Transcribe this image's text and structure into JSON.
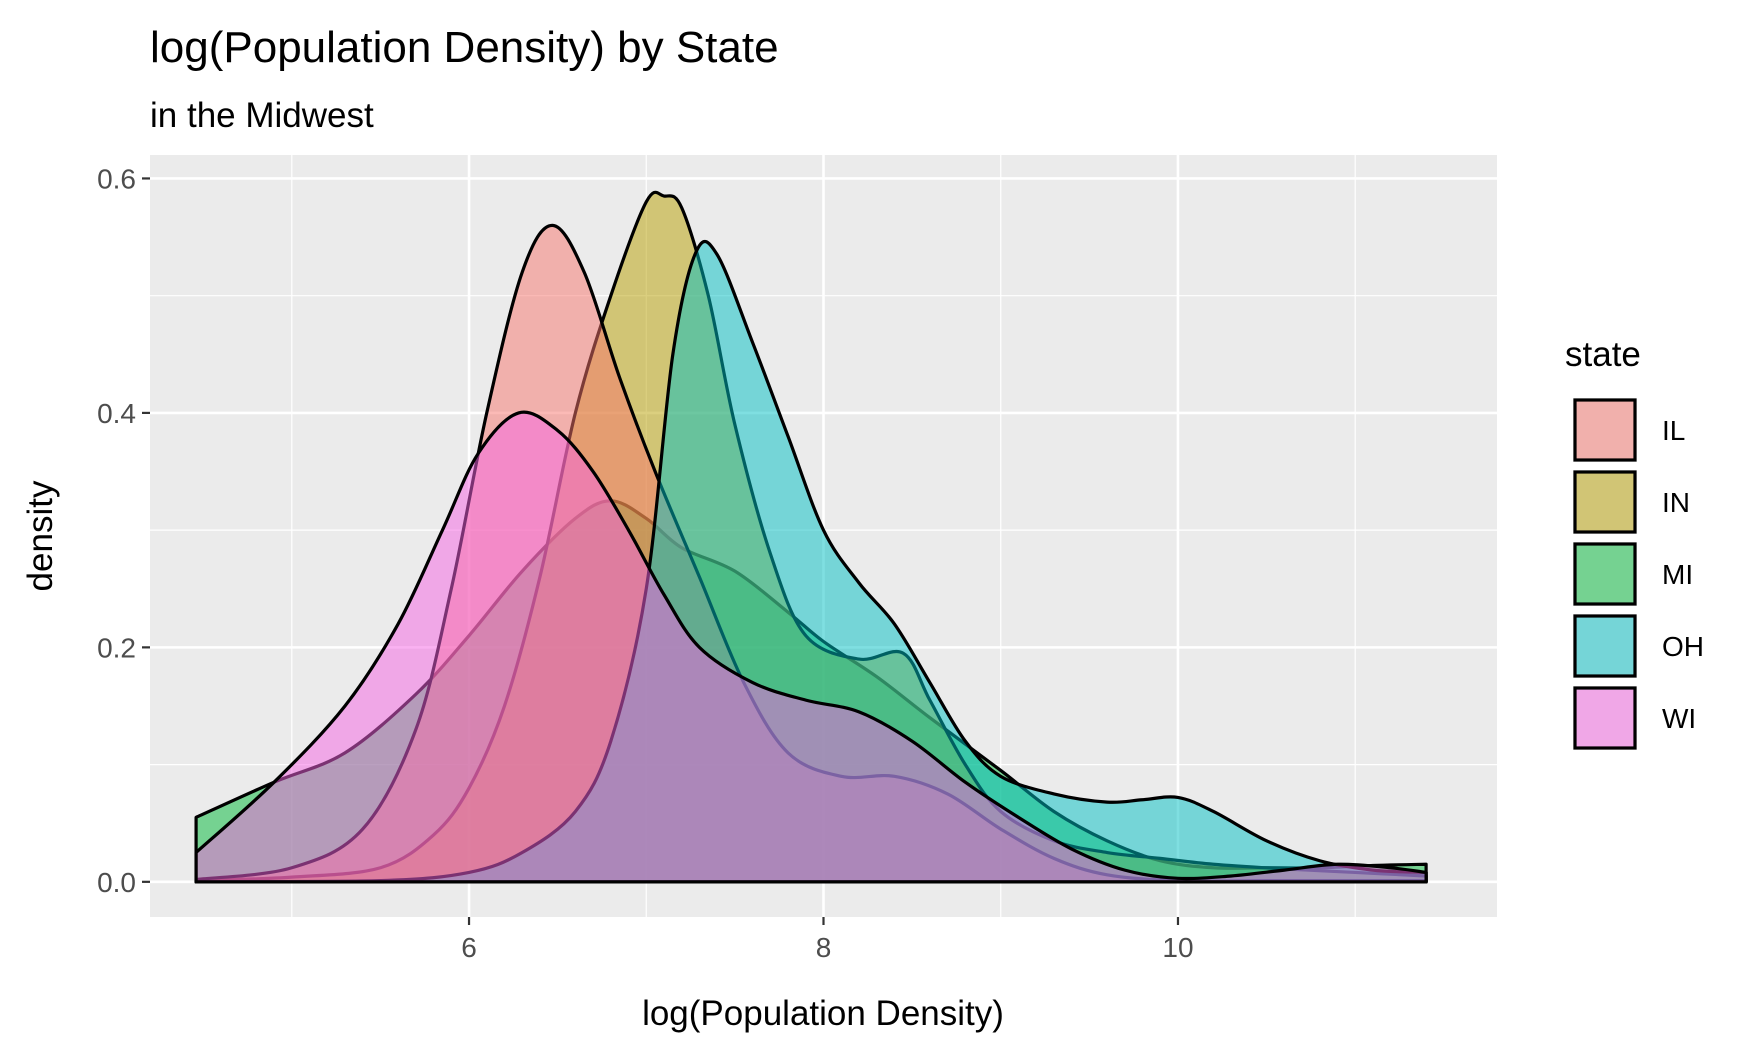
{
  "chart_data": {
    "type": "area",
    "title": "log(Population Density) by State",
    "subtitle": "in the Midwest",
    "xlabel": "log(Population Density)",
    "ylabel": "density",
    "xlim": [
      4.2,
      11.8
    ],
    "ylim": [
      -0.03,
      0.62
    ],
    "x_ticks": [
      6,
      8,
      10
    ],
    "x_tick_labels": [
      "6",
      "8",
      "10"
    ],
    "y_ticks": [
      0.0,
      0.2,
      0.4,
      0.6
    ],
    "y_tick_labels": [
      "0.0",
      "0.2",
      "0.4",
      "0.6"
    ],
    "grid": true,
    "legend": {
      "title": "state",
      "placement": "right"
    },
    "series": [
      {
        "name": "MI",
        "color": "#00BA38",
        "points": [
          [
            4.46,
            0.055
          ],
          [
            4.9,
            0.085
          ],
          [
            5.3,
            0.11
          ],
          [
            5.7,
            0.16
          ],
          [
            6.0,
            0.21
          ],
          [
            6.3,
            0.265
          ],
          [
            6.6,
            0.31
          ],
          [
            6.8,
            0.325
          ],
          [
            7.0,
            0.31
          ],
          [
            7.2,
            0.285
          ],
          [
            7.5,
            0.265
          ],
          [
            7.8,
            0.23
          ],
          [
            8.0,
            0.205
          ],
          [
            8.3,
            0.175
          ],
          [
            8.6,
            0.14
          ],
          [
            9.0,
            0.095
          ],
          [
            9.3,
            0.06
          ],
          [
            9.6,
            0.035
          ],
          [
            9.9,
            0.018
          ],
          [
            10.2,
            0.012
          ],
          [
            10.5,
            0.012
          ],
          [
            10.8,
            0.012
          ],
          [
            11.1,
            0.014
          ],
          [
            11.4,
            0.015
          ]
        ]
      },
      {
        "name": "IN",
        "color": "#B79F00",
        "points": [
          [
            4.46,
            0.001
          ],
          [
            5.0,
            0.004
          ],
          [
            5.5,
            0.012
          ],
          [
            5.8,
            0.04
          ],
          [
            6.0,
            0.08
          ],
          [
            6.2,
            0.15
          ],
          [
            6.4,
            0.26
          ],
          [
            6.6,
            0.4
          ],
          [
            6.8,
            0.5
          ],
          [
            7.0,
            0.58
          ],
          [
            7.1,
            0.585
          ],
          [
            7.2,
            0.575
          ],
          [
            7.35,
            0.5
          ],
          [
            7.5,
            0.39
          ],
          [
            7.7,
            0.28
          ],
          [
            7.9,
            0.21
          ],
          [
            8.2,
            0.19
          ],
          [
            8.45,
            0.195
          ],
          [
            8.6,
            0.155
          ],
          [
            8.8,
            0.1
          ],
          [
            9.0,
            0.06
          ],
          [
            9.3,
            0.035
          ],
          [
            9.6,
            0.025
          ],
          [
            9.9,
            0.02
          ],
          [
            10.2,
            0.015
          ],
          [
            10.6,
            0.011
          ],
          [
            11.0,
            0.008
          ],
          [
            11.4,
            0.005
          ]
        ]
      },
      {
        "name": "IL",
        "color": "#F8766D",
        "points": [
          [
            4.46,
            0.002
          ],
          [
            5.0,
            0.012
          ],
          [
            5.4,
            0.045
          ],
          [
            5.7,
            0.13
          ],
          [
            5.9,
            0.25
          ],
          [
            6.1,
            0.4
          ],
          [
            6.3,
            0.52
          ],
          [
            6.47,
            0.56
          ],
          [
            6.65,
            0.52
          ],
          [
            6.85,
            0.43
          ],
          [
            7.05,
            0.35
          ],
          [
            7.3,
            0.26
          ],
          [
            7.55,
            0.17
          ],
          [
            7.8,
            0.11
          ],
          [
            8.1,
            0.09
          ],
          [
            8.4,
            0.09
          ],
          [
            8.7,
            0.075
          ],
          [
            9.0,
            0.045
          ],
          [
            9.3,
            0.02
          ],
          [
            9.6,
            0.006
          ],
          [
            10.0,
            0.001
          ],
          [
            10.5,
            0.001
          ],
          [
            11.0,
            0.001
          ],
          [
            11.4,
            0.001
          ]
        ]
      },
      {
        "name": "OH",
        "color": "#00BFC4",
        "points": [
          [
            4.46,
            0.0
          ],
          [
            5.5,
            0.001
          ],
          [
            6.0,
            0.008
          ],
          [
            6.3,
            0.025
          ],
          [
            6.6,
            0.06
          ],
          [
            6.8,
            0.12
          ],
          [
            7.0,
            0.25
          ],
          [
            7.15,
            0.45
          ],
          [
            7.28,
            0.537
          ],
          [
            7.4,
            0.535
          ],
          [
            7.6,
            0.46
          ],
          [
            7.8,
            0.38
          ],
          [
            8.0,
            0.3
          ],
          [
            8.2,
            0.255
          ],
          [
            8.4,
            0.22
          ],
          [
            8.6,
            0.17
          ],
          [
            8.8,
            0.12
          ],
          [
            9.0,
            0.09
          ],
          [
            9.3,
            0.075
          ],
          [
            9.6,
            0.068
          ],
          [
            9.8,
            0.07
          ],
          [
            10.0,
            0.072
          ],
          [
            10.2,
            0.06
          ],
          [
            10.5,
            0.035
          ],
          [
            10.8,
            0.018
          ],
          [
            11.1,
            0.01
          ],
          [
            11.4,
            0.008
          ]
        ]
      },
      {
        "name": "WI",
        "color": "#F564E3",
        "points": [
          [
            4.46,
            0.025
          ],
          [
            4.9,
            0.085
          ],
          [
            5.3,
            0.15
          ],
          [
            5.6,
            0.22
          ],
          [
            5.85,
            0.3
          ],
          [
            6.05,
            0.365
          ],
          [
            6.28,
            0.4
          ],
          [
            6.5,
            0.385
          ],
          [
            6.7,
            0.35
          ],
          [
            6.9,
            0.3
          ],
          [
            7.1,
            0.245
          ],
          [
            7.3,
            0.2
          ],
          [
            7.6,
            0.17
          ],
          [
            7.9,
            0.155
          ],
          [
            8.2,
            0.145
          ],
          [
            8.5,
            0.12
          ],
          [
            8.8,
            0.085
          ],
          [
            9.1,
            0.055
          ],
          [
            9.4,
            0.028
          ],
          [
            9.7,
            0.01
          ],
          [
            10.0,
            0.003
          ],
          [
            10.3,
            0.005
          ],
          [
            10.6,
            0.01
          ],
          [
            10.9,
            0.015
          ],
          [
            11.2,
            0.012
          ],
          [
            11.4,
            0.008
          ]
        ]
      }
    ]
  }
}
